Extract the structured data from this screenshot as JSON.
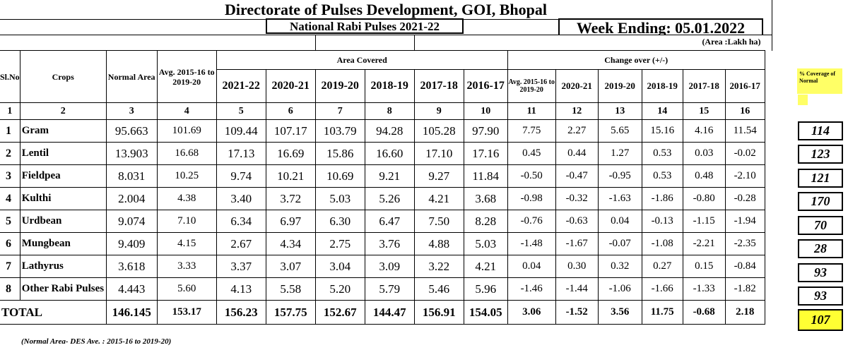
{
  "title": "Directorate of Pulses Development, GOI, Bhopal",
  "subtitle": "National Rabi Pulses  2021-22",
  "week_ending": "Week Ending: 05.01.2022",
  "unit_note": "(Area :Lakh ha)",
  "headers": {
    "sl_no": "Sl.No",
    "crops": "Crops",
    "normal_area": "Normal Area",
    "avg": "Avg. 2015-16 to 2019-20",
    "area_covered": "Area Covered",
    "change_over": "Change over  (+/-)",
    "area_years": [
      "2021-22",
      "2020-21",
      "2019-20",
      "2018-19",
      "2017-18",
      "2016-17"
    ],
    "change_avg": "Avg. 2015-16 to 2019-20",
    "change_years": [
      "2020-21",
      "2019-20",
      "2018-19",
      "2017-18",
      "2016-17"
    ],
    "coverage": "% Coverage of Normal"
  },
  "col_numbers": [
    "1",
    "2",
    "3",
    "4",
    "5",
    "6",
    "7",
    "8",
    "9",
    "10",
    "11",
    "12",
    "13",
    "14",
    "15",
    "16"
  ],
  "rows": [
    {
      "sn": "1",
      "crop": "Gram",
      "normal": "95.663",
      "avg": "101.69",
      "area": [
        "109.44",
        "107.17",
        "103.79",
        "94.28",
        "105.28",
        "97.90"
      ],
      "change": [
        "7.75",
        "2.27",
        "5.65",
        "15.16",
        "4.16",
        "11.54"
      ],
      "coverage": "114"
    },
    {
      "sn": "2",
      "crop": "Lentil",
      "normal": "13.903",
      "avg": "16.68",
      "area": [
        "17.13",
        "16.69",
        "15.86",
        "16.60",
        "17.10",
        "17.16"
      ],
      "change": [
        "0.45",
        "0.44",
        "1.27",
        "0.53",
        "0.03",
        "-0.02"
      ],
      "coverage": "123"
    },
    {
      "sn": "3",
      "crop": "Fieldpea",
      "normal": "8.031",
      "avg": "10.25",
      "area": [
        "9.74",
        "10.21",
        "10.69",
        "9.21",
        "9.27",
        "11.84"
      ],
      "change": [
        "-0.50",
        "-0.47",
        "-0.95",
        "0.53",
        "0.48",
        "-2.10"
      ],
      "coverage": "121"
    },
    {
      "sn": "4",
      "crop": "Kulthi",
      "normal": "2.004",
      "avg": "4.38",
      "area": [
        "3.40",
        "3.72",
        "5.03",
        "5.26",
        "4.21",
        "3.68"
      ],
      "change": [
        "-0.98",
        "-0.32",
        "-1.63",
        "-1.86",
        "-0.80",
        "-0.28"
      ],
      "coverage": "170"
    },
    {
      "sn": "5",
      "crop": "Urdbean",
      "normal": "9.074",
      "avg": "7.10",
      "area": [
        "6.34",
        "6.97",
        "6.30",
        "6.47",
        "7.50",
        "8.28"
      ],
      "change": [
        "-0.76",
        "-0.63",
        "0.04",
        "-0.13",
        "-1.15",
        "-1.94"
      ],
      "coverage": "70"
    },
    {
      "sn": "6",
      "crop": "Mungbean",
      "normal": "9.409",
      "avg": "4.15",
      "area": [
        "2.67",
        "4.34",
        "2.75",
        "3.76",
        "4.88",
        "5.03"
      ],
      "change": [
        "-1.48",
        "-1.67",
        "-0.07",
        "-1.08",
        "-2.21",
        "-2.35"
      ],
      "coverage": "28"
    },
    {
      "sn": "7",
      "crop": "Lathyrus",
      "normal": "3.618",
      "avg": "3.33",
      "area": [
        "3.37",
        "3.07",
        "3.04",
        "3.09",
        "3.22",
        "4.21"
      ],
      "change": [
        "0.04",
        "0.30",
        "0.32",
        "0.27",
        "0.15",
        "-0.84"
      ],
      "coverage": "93"
    },
    {
      "sn": "8",
      "crop": "Other Rabi Pulses",
      "normal": "4.443",
      "avg": "5.60",
      "area": [
        "4.13",
        "5.58",
        "5.20",
        "5.79",
        "5.46",
        "5.96"
      ],
      "change": [
        "-1.46",
        "-1.44",
        "-1.06",
        "-1.66",
        "-1.33",
        "-1.82"
      ],
      "coverage": "93"
    }
  ],
  "total": {
    "label": "TOTAL",
    "normal": "146.145",
    "avg": "153.17",
    "area": [
      "156.23",
      "157.75",
      "152.67",
      "144.47",
      "156.91",
      "154.05"
    ],
    "change": [
      "3.06",
      "-1.52",
      "3.56",
      "11.75",
      "-0.68",
      "2.18"
    ],
    "coverage": "107"
  },
  "footnote": "(Normal Area- DES  Ave. : 2015-16 to 2019-20)",
  "colors": {
    "highlight": "#ffff66",
    "total_highlight": "#ffff33"
  }
}
